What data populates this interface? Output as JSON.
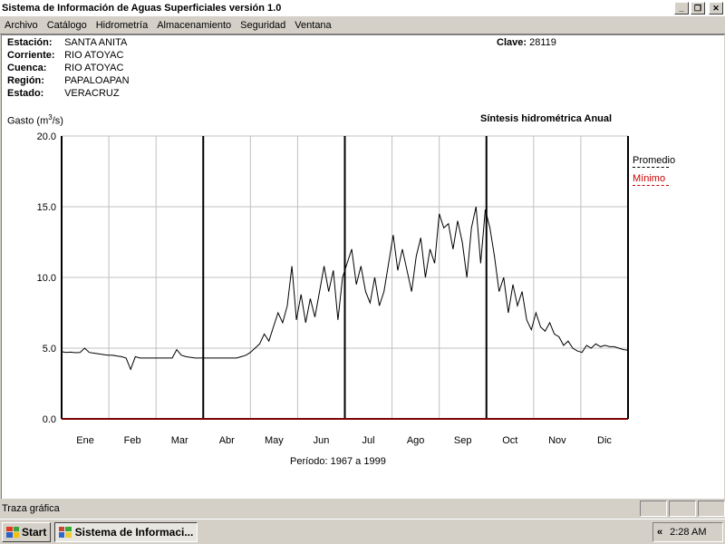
{
  "window": {
    "title": "Sistema de Información de Aguas Superficiales  versión 1.0"
  },
  "window_buttons": {
    "minimize": "_",
    "restore": "❐",
    "close": "✕"
  },
  "menu": [
    "Archivo",
    "Catálogo",
    "Hidrometría",
    "Almacenamiento",
    "Seguridad",
    "Ventana"
  ],
  "station": {
    "rows": [
      {
        "key": "Estación:",
        "value": "SANTA ANITA"
      },
      {
        "key": "Corriente:",
        "value": "RIO ATOYAC"
      },
      {
        "key": "Cuenca:",
        "value": "RIO ATOYAC"
      },
      {
        "key": "Región:",
        "value": "PAPALOAPAN"
      },
      {
        "key": "Estado:",
        "value": "VERACRUZ"
      }
    ],
    "clave_label": "Clave:",
    "clave_value": "28119"
  },
  "chart_header": {
    "ylabel_prefix": "Gasto (m",
    "ylabel_sup": "3",
    "ylabel_suffix": "/s)",
    "synthesis": "Síntesis hidrométrica   Anual"
  },
  "legend": [
    {
      "label": "Promedio",
      "color": "#000000",
      "style": "dashed"
    },
    {
      "label": "Mínimo",
      "color": "#cc0000",
      "style": "dashed"
    }
  ],
  "periodo": "Período:  1967 a 1999",
  "chart_data": {
    "type": "line",
    "ylim": [
      0,
      20
    ],
    "yticks": [
      "0.0",
      "5.0",
      "10.0",
      "15.0",
      "20.0"
    ],
    "ytick_values": [
      0,
      5,
      10,
      15,
      20
    ],
    "months": [
      "Ene",
      "Feb",
      "Mar",
      "Abr",
      "May",
      "Jun",
      "Jul",
      "Ago",
      "Sep",
      "Oct",
      "Nov",
      "Dic"
    ],
    "grid": true,
    "legend_position": "right",
    "series": [
      {
        "name": "Promedio",
        "color": "#000000",
        "values": [
          4.75,
          4.7,
          4.72,
          4.68,
          4.7,
          5.0,
          4.7,
          4.65,
          4.6,
          4.55,
          4.5,
          4.5,
          4.45,
          4.4,
          4.3,
          3.5,
          4.4,
          4.3,
          4.3,
          4.3,
          4.3,
          4.3,
          4.3,
          4.3,
          4.3,
          4.9,
          4.5,
          4.4,
          4.35,
          4.3,
          4.3,
          4.3,
          4.3,
          4.3,
          4.3,
          4.3,
          4.3,
          4.3,
          4.3,
          4.4,
          4.5,
          4.7,
          5.0,
          5.3,
          6.0,
          5.5,
          6.5,
          7.5,
          6.8,
          8.0,
          10.8,
          7.0,
          8.8,
          6.8,
          8.5,
          7.2,
          9.0,
          10.8,
          9.0,
          10.5,
          7.0,
          10.0,
          11.0,
          12.0,
          9.5,
          10.8,
          9.0,
          8.2,
          10.0,
          8.0,
          9.0,
          11.0,
          13.0,
          10.5,
          12.0,
          10.5,
          9.0,
          11.5,
          12.8,
          10.0,
          12.0,
          11.0,
          14.5,
          13.5,
          13.8,
          12.0,
          14.0,
          12.5,
          10.0,
          13.5,
          15.0,
          11.0,
          14.8,
          13.5,
          11.5,
          9.0,
          10.0,
          7.5,
          9.5,
          8.0,
          9.0,
          7.0,
          6.3,
          7.5,
          6.5,
          6.2,
          6.8,
          6.0,
          5.8,
          5.2,
          5.5,
          5.0,
          4.8,
          4.7,
          5.2,
          5.0,
          5.3,
          5.1,
          5.2,
          5.1,
          5.1,
          5.0,
          4.9,
          4.85
        ]
      },
      {
        "name": "Mínimo",
        "color": "#800000",
        "values": [
          0.0,
          0.0,
          0.0,
          0.0,
          0.0,
          0.0,
          0.0,
          0.0,
          0.0,
          0.0,
          0.0,
          0.0
        ]
      }
    ]
  },
  "status": {
    "text": "Traza gráfica"
  },
  "taskbar": {
    "start": "Start",
    "task": "Sistema de Informaci...",
    "tray_arrow": "«",
    "clock": "2:28 AM"
  }
}
